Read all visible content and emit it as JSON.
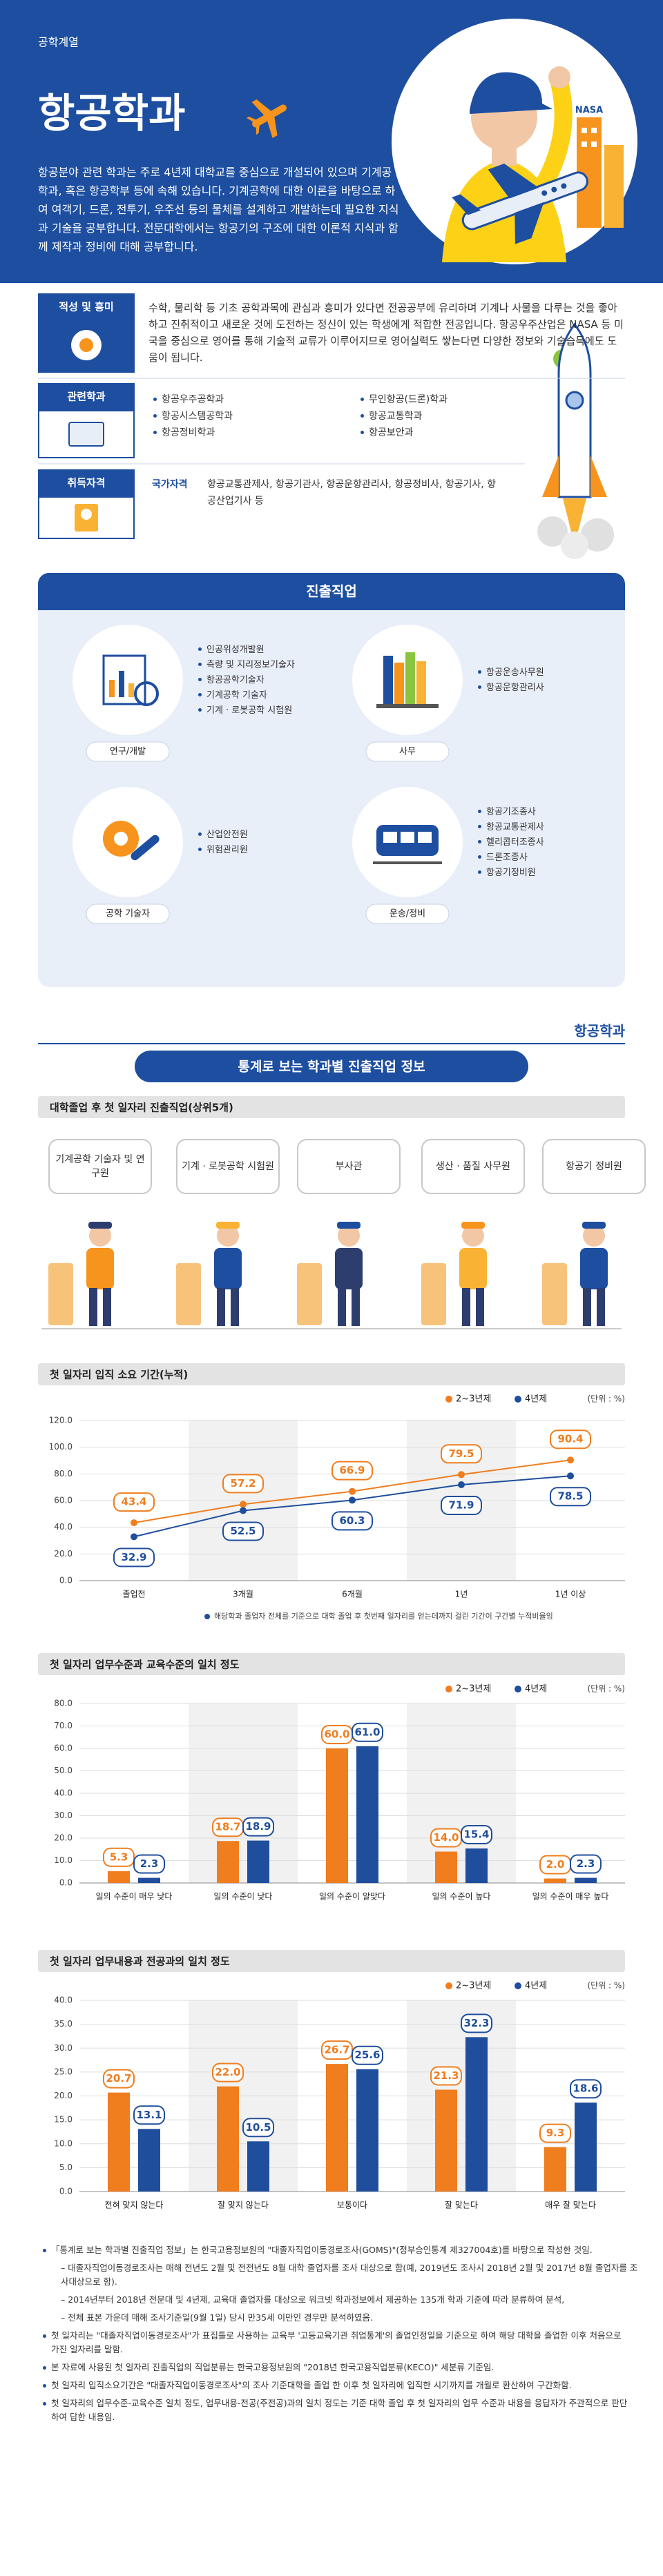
{
  "header": {
    "category": "공학계열",
    "title": "항공학과",
    "illustration_text": "NASA",
    "description": "항공분야 관련 학과는 주로 4년제 대학교를 중심으로 개설되어 있으며 기계공학과, 혹은 항공학부 등에 속해 있습니다. 기계공학에 대한 이론을 바탕으로 하여 여객기, 드론, 전투기, 우주선 등의 물체를 설계하고 개발하는데 필요한 지식과 기술을 공부합니다. 전문대학에서는 항공기의 구조에 대한 이론적 지식과 함께 제작과 정비에 대해 공부합니다."
  },
  "aptitude": {
    "label": "적성 및 흥미",
    "text": "수학, 물리학 등 기초 공학과목에 관심과 흥미가 있다면 전공공부에 유리하며 기계나 사물을 다루는 것을 좋아하고 진취적이고 새로운 것에 도전하는 정신이 있는 학생에게 적합한 전공입니다. 항공우주산업은 NASA 등 미국을 중심으로 영어를 통해 기술적 교류가 이루어지므로 영어실력도 쌓는다면 다양한 정보와 기술습득에도 도움이 됩니다."
  },
  "related_majors": {
    "label": "관련학과",
    "items": [
      "항공우주공학과",
      "항공시스템공학과",
      "항공정비학과",
      "무인항공(드론)학과",
      "항공교통학과",
      "항공보안과"
    ]
  },
  "certificates": {
    "label": "취득자격",
    "kind": "국가자격",
    "text": "항공교통관제사, 항공기관사, 항공운항관리사, 항공정비사, 항공기사, 항공산업기사 등"
  },
  "careers": {
    "title": "진출직업",
    "groups": [
      {
        "name": "연구/개발",
        "jobs": [
          "인공위성개발원",
          "측량 및 지리정보기술자",
          "항공공학기술자",
          "기계공학 기술자",
          "기계 · 로봇공학 시험원"
        ]
      },
      {
        "name": "사무",
        "jobs": [
          "항공운송사무원",
          "항공운항관리사"
        ]
      },
      {
        "name": "공학 기술자",
        "jobs": [
          "산업안전원",
          "위험관리원"
        ]
      },
      {
        "name": "운송/정비",
        "jobs": [
          "항공기조종사",
          "항공교통관제사",
          "헬리콥터조종사",
          "드론조종사",
          "항공기정비원"
        ]
      }
    ]
  },
  "side_label": "항공학과",
  "stats": {
    "title": "통계로 보는 학과별 진출직업 정보",
    "top_jobs": {
      "title": "대학졸업 후 첫 일자리 진출직업(상위5개)",
      "jobs": [
        "기계공학 기술자 및 연구원",
        "기계 · 로봇공학 시험원",
        "부사관",
        "생산 · 품질 사무원",
        "항공기 정비원"
      ]
    }
  },
  "chart_data": [
    {
      "type": "line",
      "title": "첫 일자리 입직 소요 기간(누적)",
      "unit": "(단위 : %)",
      "categories": [
        "졸업전",
        "3개월",
        "6개월",
        "1년",
        "1년 이상"
      ],
      "series": [
        {
          "name": "2~3년제",
          "color": "#f07d1e",
          "values": [
            43.4,
            57.2,
            66.9,
            79.5,
            90.4
          ]
        },
        {
          "name": "4년제",
          "color": "#1f4e9c",
          "values": [
            32.9,
            52.5,
            60.3,
            71.9,
            78.5
          ]
        }
      ],
      "ylim": [
        0,
        120
      ],
      "yticks": [
        {
          "value": 0,
          "label": "0.0"
        },
        {
          "value": 20,
          "label": "20.0"
        },
        {
          "value": 40,
          "label": "40.0"
        },
        {
          "value": 60,
          "label": "60.0"
        },
        {
          "value": 80,
          "label": "80.0"
        },
        {
          "value": 100,
          "label": "100.0"
        },
        {
          "value": 120,
          "label": "120.0"
        }
      ],
      "note": "해당학과 졸업자 전체를 기준으로 대학 졸업 후 첫번째 일자리를 얻는데까지 걸린 기간이 구간별 누적비율임"
    },
    {
      "type": "bar",
      "title": "첫 일자리 업무수준과 교육수준의 일치 정도",
      "unit": "(단위 : %)",
      "categories": [
        "일의 수준이 매우 낮다",
        "일의 수준이 낮다",
        "일의 수준이 알맞다",
        "일의 수준이 높다",
        "일의 수준이 매우 높다"
      ],
      "series": [
        {
          "name": "2~3년제",
          "color": "#f07d1e",
          "values": [
            5.3,
            18.7,
            60,
            14,
            2
          ],
          "value_labels": [
            "5.3",
            "18.7",
            "60.0",
            "14.0",
            "2.0"
          ]
        },
        {
          "name": "4년제",
          "color": "#1f4e9c",
          "values": [
            2.3,
            18.9,
            61,
            15.4,
            2.3
          ],
          "value_labels": [
            "2.3",
            "18.9",
            "61.0",
            "15.4",
            "2.3"
          ]
        }
      ],
      "ylim": [
        0,
        80
      ],
      "yticks": [
        {
          "value": 0,
          "label": "0.0"
        },
        {
          "value": 10,
          "label": "10.0"
        },
        {
          "value": 20,
          "label": "20.0"
        },
        {
          "value": 30,
          "label": "30.0"
        },
        {
          "value": 40,
          "label": "40.0"
        },
        {
          "value": 50,
          "label": "50.0"
        },
        {
          "value": 60,
          "label": "60.0"
        },
        {
          "value": 70,
          "label": "70.0"
        },
        {
          "value": 80,
          "label": "80.0"
        }
      ]
    },
    {
      "type": "bar",
      "title": "첫 일자리 업무내용과 전공과의 일치 정도",
      "unit": "(단위 : %)",
      "categories": [
        "전혀 맞지 않는다",
        "잘 맞지 않는다",
        "보통이다",
        "잘 맞는다",
        "매우 잘 맞는다"
      ],
      "series": [
        {
          "name": "2~3년제",
          "color": "#f07d1e",
          "values": [
            20.7,
            22,
            26.7,
            21.3,
            9.3
          ],
          "value_labels": [
            "20.7",
            "22.0",
            "26.7",
            "21.3",
            "9.3"
          ]
        },
        {
          "name": "4년제",
          "color": "#1f4e9c",
          "values": [
            13.1,
            10.5,
            25.6,
            32.3,
            18.6
          ],
          "value_labels": [
            "13.1",
            "10.5",
            "25.6",
            "32.3",
            "18.6"
          ]
        }
      ],
      "ylim": [
        0,
        40
      ],
      "yticks": [
        {
          "value": 0,
          "label": "0.0"
        },
        {
          "value": 5,
          "label": "5.0"
        },
        {
          "value": 10,
          "label": "10.0"
        },
        {
          "value": 15,
          "label": "15.0"
        },
        {
          "value": 20,
          "label": "20.0"
        },
        {
          "value": 25,
          "label": "25.0"
        },
        {
          "value": 30,
          "label": "30.0"
        },
        {
          "value": 35,
          "label": "35.0"
        },
        {
          "value": 40,
          "label": "40.0"
        }
      ]
    }
  ],
  "notes": [
    "「통계로 보는 학과별 진출직업 정보」는 한국고용정보원의 \"대졸자직업이동경로조사(GOMS)\"(정부승인통계 제327004호)를 바탕으로 작성한 것임.",
    "– 대졸자직업이동경로조사는 매해 전년도 2월 및 전전년도 8월 대학 졸업자를 조사 대상으로 함(예, 2019년도 조사시 2018년 2월 및 2017년 8월 졸업자를 조사대상으로 함).",
    "– 2014년부터 2018년 전문대 및 4년제, 교육대 졸업자를 대상으로 워크넷 학과정보에서 제공하는 135개 학과 기준에 따라 분류하여 분석,",
    "– 전체 표본 가운데 매해 조사기준일(9월 1일) 당시 만35세 이만인 경우만 분석하였음.",
    "첫 일자리는 \"대졸자직업이동경로조사\"가 표집틀로 사용하는 교육부 '고등교육기관 취업통계'의 졸업인정일을 기준으로 하여 해당 대학을 졸업한 이후 처음으로 가진 일자리를 말함.",
    "본 자료에 사용된 첫 일자리 진출직업의 직업분류는 한국고용정보원의 \"2018년 한국고용직업분류(KECO)\" 세분류 기준임.",
    "첫 일자리 입직소요기간은 \"대졸자직업이동경로조사\"의 조사 기준대학을 졸업 한 이후 첫 일자리에 입직한 시기까지를 개월로 환산하여 구간화함.",
    "첫 일자리의 업무수준-교육수준 일치 정도, 업무내용-전공(주전공)과의 일치 정도는 기준 대학 졸업 후 첫 일자리의 업무 수준과 내용을 응답자가 주관적으로 판단하여 답한 내용임."
  ]
}
